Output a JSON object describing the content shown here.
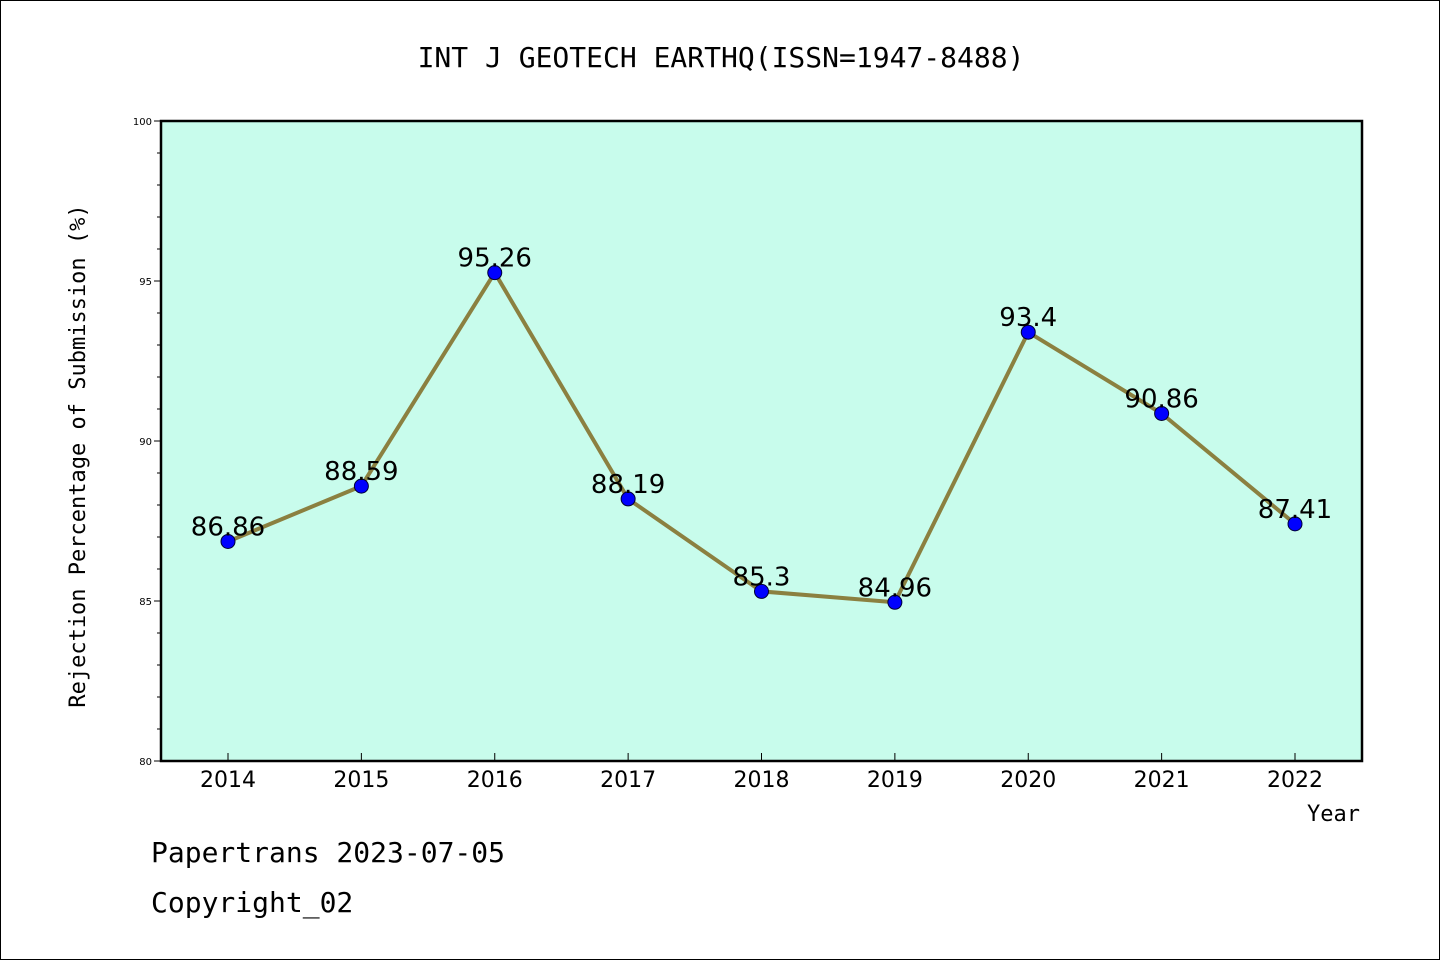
{
  "chart_data": {
    "type": "line",
    "title": "INT J GEOTECH EARTHQ(ISSN=1947-8488)",
    "xlabel": "Year",
    "ylabel": "Rejection Percentage of Submission (%)",
    "categories": [
      "2014",
      "2015",
      "2016",
      "2017",
      "2018",
      "2019",
      "2020",
      "2021",
      "2022"
    ],
    "values": [
      86.86,
      88.59,
      95.26,
      88.19,
      85.3,
      84.96,
      93.4,
      90.86,
      87.41
    ],
    "data_labels": [
      "86.86",
      "88.59",
      "95.26",
      "88.19",
      "85.3",
      "84.96",
      "93.4",
      "90.86",
      "87.41"
    ],
    "ylim": [
      80,
      100
    ],
    "yticks": [
      "80",
      "85",
      "90",
      "95",
      "100"
    ],
    "grid": false,
    "colors": {
      "plot_background": "#c8fcec",
      "line": "#8b8040",
      "marker": "#0000ff",
      "border": "#000000"
    }
  },
  "footer": {
    "line1": "Papertrans 2023-07-05",
    "line2": "Copyright_02"
  }
}
